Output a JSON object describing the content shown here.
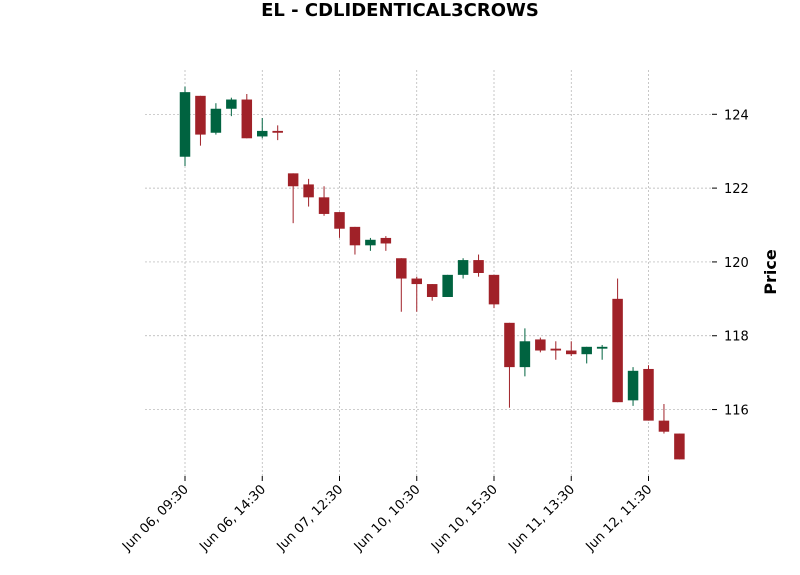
{
  "chart_data": {
    "type": "candlestick",
    "title": "EL - CDLIDENTICAL3CROWS",
    "xlabel": "",
    "ylabel": "Price",
    "ylim": [
      114.2,
      125.2
    ],
    "y_ticks": [
      116,
      118,
      120,
      122,
      124
    ],
    "x_tick_labels": [
      {
        "index": 0,
        "label": "Jun 06, 09:30"
      },
      {
        "index": 5,
        "label": "Jun 06, 14:30"
      },
      {
        "index": 10,
        "label": "Jun 07, 12:30"
      },
      {
        "index": 15,
        "label": "Jun 10, 10:30"
      },
      {
        "index": 20,
        "label": "Jun 10, 15:30"
      },
      {
        "index": 25,
        "label": "Jun 11, 13:30"
      },
      {
        "index": 30,
        "label": "Jun 12, 11:30"
      }
    ],
    "grid": true,
    "colors": {
      "up": "#006340",
      "down": "#a02128",
      "grid": "#b0b0b0"
    },
    "candles": [
      {
        "o": 122.85,
        "h": 124.75,
        "l": 122.6,
        "c": 124.6
      },
      {
        "o": 124.5,
        "h": 124.5,
        "l": 123.15,
        "c": 123.45
      },
      {
        "o": 123.5,
        "h": 124.3,
        "l": 123.45,
        "c": 124.15
      },
      {
        "o": 124.15,
        "h": 124.45,
        "l": 123.95,
        "c": 124.4
      },
      {
        "o": 124.4,
        "h": 124.55,
        "l": 123.35,
        "c": 123.35
      },
      {
        "o": 123.4,
        "h": 123.9,
        "l": 123.35,
        "c": 123.55
      },
      {
        "o": 123.55,
        "h": 123.7,
        "l": 123.3,
        "c": 123.5
      },
      {
        "o": 122.4,
        "h": 122.4,
        "l": 121.05,
        "c": 122.05
      },
      {
        "o": 122.1,
        "h": 122.25,
        "l": 121.5,
        "c": 121.75
      },
      {
        "o": 121.75,
        "h": 122.05,
        "l": 121.25,
        "c": 121.3
      },
      {
        "o": 121.35,
        "h": 121.35,
        "l": 120.65,
        "c": 120.9
      },
      {
        "o": 120.95,
        "h": 120.95,
        "l": 120.2,
        "c": 120.45
      },
      {
        "o": 120.45,
        "h": 120.65,
        "l": 120.3,
        "c": 120.6
      },
      {
        "o": 120.65,
        "h": 120.7,
        "l": 120.3,
        "c": 120.5
      },
      {
        "o": 120.1,
        "h": 120.1,
        "l": 118.65,
        "c": 119.55
      },
      {
        "o": 119.55,
        "h": 119.6,
        "l": 118.65,
        "c": 119.4
      },
      {
        "o": 119.4,
        "h": 119.4,
        "l": 118.95,
        "c": 119.05
      },
      {
        "o": 119.05,
        "h": 119.65,
        "l": 119.05,
        "c": 119.65
      },
      {
        "o": 119.65,
        "h": 120.1,
        "l": 119.55,
        "c": 120.05
      },
      {
        "o": 120.05,
        "h": 120.2,
        "l": 119.6,
        "c": 119.7
      },
      {
        "o": 119.65,
        "h": 119.65,
        "l": 118.75,
        "c": 118.85
      },
      {
        "o": 118.35,
        "h": 118.35,
        "l": 116.05,
        "c": 117.15
      },
      {
        "o": 117.15,
        "h": 118.2,
        "l": 116.9,
        "c": 117.85
      },
      {
        "o": 117.9,
        "h": 117.95,
        "l": 117.55,
        "c": 117.6
      },
      {
        "o": 117.65,
        "h": 117.85,
        "l": 117.35,
        "c": 117.6
      },
      {
        "o": 117.6,
        "h": 117.85,
        "l": 117.45,
        "c": 117.5
      },
      {
        "o": 117.5,
        "h": 117.7,
        "l": 117.25,
        "c": 117.7
      },
      {
        "o": 117.65,
        "h": 117.75,
        "l": 117.35,
        "c": 117.7
      },
      {
        "o": 119.0,
        "h": 119.55,
        "l": 116.2,
        "c": 116.2
      },
      {
        "o": 116.25,
        "h": 117.15,
        "l": 116.1,
        "c": 117.05
      },
      {
        "o": 117.1,
        "h": 117.2,
        "l": 115.7,
        "c": 115.7
      },
      {
        "o": 115.7,
        "h": 116.15,
        "l": 115.35,
        "c": 115.4
      },
      {
        "o": 115.35,
        "h": 115.35,
        "l": 114.65,
        "c": 114.65
      }
    ]
  }
}
